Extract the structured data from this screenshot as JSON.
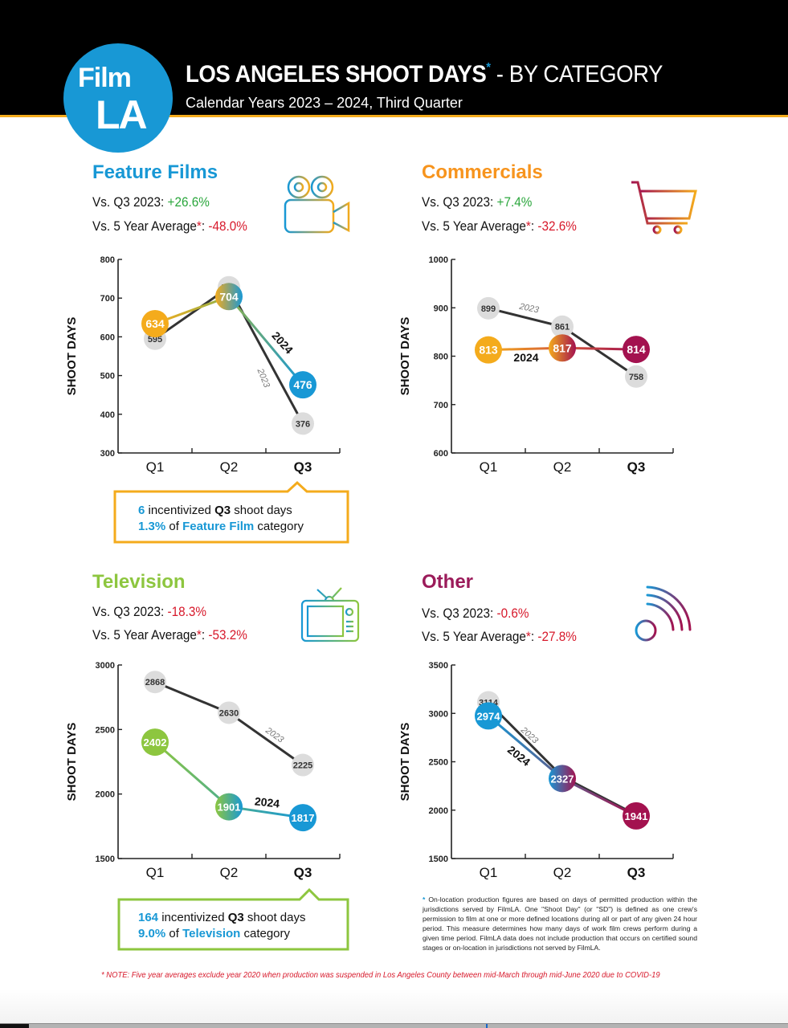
{
  "header": {
    "logo_line1": "Film",
    "logo_line2": "LA",
    "title_main": "LOS ANGELES SHOOT DAYS",
    "title_star": "*",
    "title_suffix": "- BY CATEGORY",
    "subtitle": "Calendar Years 2023 – 2024, Third Quarter"
  },
  "colors": {
    "brand_blue": "#1898d5",
    "orange": "#f4ab1c",
    "green": "#8dc63f",
    "maroon": "#a3124f",
    "commercials_title": "#f7941d",
    "other_title": "#9b1b5a",
    "gray_2023": "#333333",
    "gray_bubble": "#dcdcdc",
    "positive": "#2aa63c",
    "negative": "#d7192b"
  },
  "sections": {
    "feature": {
      "title": "Feature Films",
      "vs_q3_label": "Vs. Q3 2023: ",
      "vs_q3_value": "+26.6%",
      "vs_avg_label": "Vs. 5 Year Average",
      "vs_avg_star": "*",
      "vs_avg_colon": ": ",
      "vs_avg_value": "-48.0%",
      "icon": "video-camera-icon",
      "callout": {
        "line1_num": "6",
        "line1_text": " incentivized ",
        "line1_bold": "Q3",
        "line1_rest": " shoot days",
        "line2_num": "1.3%",
        "line2_text": " of ",
        "line2_bold": "Feature Film",
        "line2_rest": " category"
      }
    },
    "commercials": {
      "title": "Commercials",
      "vs_q3_label": "Vs. Q3 2023: ",
      "vs_q3_value": "+7.4%",
      "vs_avg_label": "Vs. 5 Year Average",
      "vs_avg_star": "*",
      "vs_avg_colon": ": ",
      "vs_avg_value": "-32.6%",
      "icon": "shopping-cart-icon"
    },
    "television": {
      "title": "Television",
      "vs_q3_label": "Vs. Q3 2023: ",
      "vs_q3_value": "-18.3%",
      "vs_avg_label": "Vs. 5 Year Average",
      "vs_avg_star": "*",
      "vs_avg_colon": ": ",
      "vs_avg_value": "-53.2%",
      "icon": "television-icon",
      "callout": {
        "line1_num": "164",
        "line1_text": " incentivized ",
        "line1_bold": "Q3",
        "line1_rest": " shoot days",
        "line2_num": "9.0%",
        "line2_text": " of ",
        "line2_bold": "Television",
        "line2_rest": " category"
      }
    },
    "other": {
      "title": "Other",
      "vs_q3_label": "Vs. Q3 2023: ",
      "vs_q3_value": "-0.6%",
      "vs_avg_label": "Vs. 5 Year Average",
      "vs_avg_star": "*",
      "vs_avg_colon": ": ",
      "vs_avg_value": "-27.8%",
      "icon": "broadcast-signal-icon"
    }
  },
  "chart_data": [
    {
      "type": "line",
      "title": "Feature Films",
      "categories": [
        "Q1",
        "Q2",
        "Q3"
      ],
      "ylabel": "SHOOT DAYS",
      "ylim": [
        300,
        800
      ],
      "yticks": [
        300,
        400,
        500,
        600,
        700,
        800
      ],
      "series": [
        {
          "name": "2023",
          "values": [
            595,
            728,
            376
          ]
        },
        {
          "name": "2024",
          "values": [
            634,
            704,
            476
          ],
          "colors": [
            "#f4ab1c",
            "#8fb24a",
            "#1898d5"
          ]
        }
      ]
    },
    {
      "type": "line",
      "title": "Commercials",
      "categories": [
        "Q1",
        "Q2",
        "Q3"
      ],
      "ylabel": "SHOOT DAYS",
      "ylim": [
        600,
        1000
      ],
      "yticks": [
        600,
        700,
        800,
        900,
        1000
      ],
      "series": [
        {
          "name": "2023",
          "values": [
            899,
            861,
            758
          ]
        },
        {
          "name": "2024",
          "values": [
            813,
            817,
            814
          ],
          "colors": [
            "#f4ab1c",
            "#d45a3a",
            "#a3124f"
          ]
        }
      ]
    },
    {
      "type": "line",
      "title": "Television",
      "categories": [
        "Q1",
        "Q2",
        "Q3"
      ],
      "ylabel": "SHOOT DAYS",
      "ylim": [
        1500,
        3000
      ],
      "yticks": [
        1500,
        2000,
        2500,
        3000
      ],
      "series": [
        {
          "name": "2023",
          "values": [
            2868,
            2630,
            2225
          ]
        },
        {
          "name": "2024",
          "values": [
            2402,
            1901,
            1817
          ],
          "colors": [
            "#8dc63f",
            "#4cae8f",
            "#1898d5"
          ]
        }
      ]
    },
    {
      "type": "line",
      "title": "Other",
      "categories": [
        "Q1",
        "Q2",
        "Q3"
      ],
      "ylabel": "SHOOT DAYS",
      "ylim": [
        1500,
        3500
      ],
      "yticks": [
        1500,
        2000,
        2500,
        3000,
        3500
      ],
      "series": [
        {
          "name": "2023",
          "values": [
            3114,
            2347,
            1952
          ]
        },
        {
          "name": "2024",
          "values": [
            2974,
            2327,
            1941
          ],
          "colors": [
            "#1898d5",
            "#5e5a8a",
            "#a3124f"
          ]
        }
      ]
    }
  ],
  "footnote": {
    "star": "*",
    "text": " On-location production figures are based on days of permitted production within the jurisdictions served by FilmLA. One \"Shoot Day\" (or \"SD\") is defined as one crew's permission to film at one or more defined locations during all or part of any given 24 hour period. This measure determines how many days of work film crews perform during a given time period. FilmLA data does not include production that occurs on certified sound stages or on-location in jurisdictions not served by FilmLA."
  },
  "note": "* NOTE: Five year averages exclude year 2020 when production was suspended in Los Angeles County between mid-March through mid-June 2020 due to COVID-19"
}
